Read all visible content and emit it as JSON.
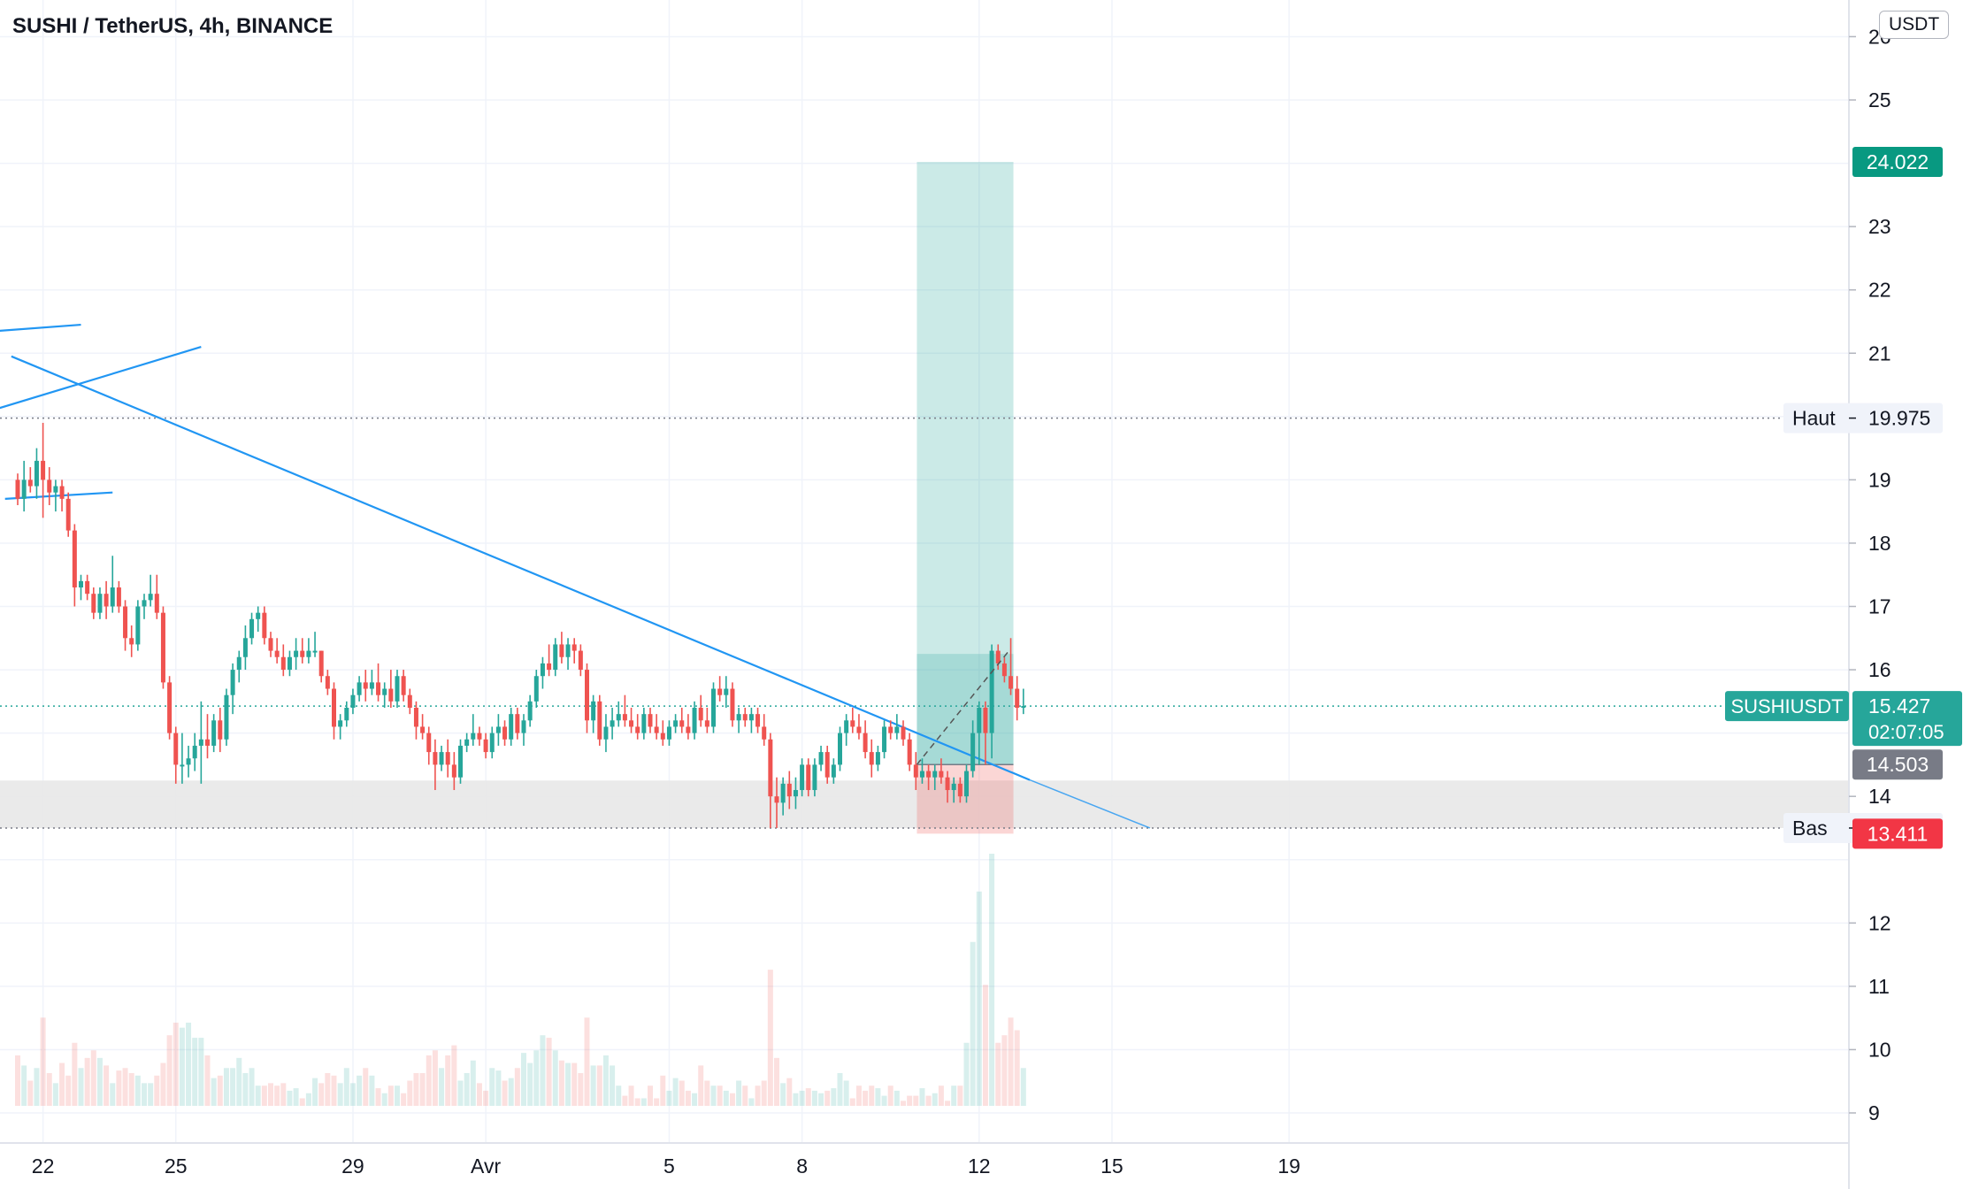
{
  "header": {
    "title": "SUSHI / TetherUS, 4h, BINANCE"
  },
  "currency_button": "USDT",
  "colors": {
    "up": "#26a69a",
    "down": "#ef5350",
    "trendline": "#2196f3",
    "grid": "#f0f3fa"
  },
  "labels": {
    "target": {
      "value": "24.022",
      "color": "#089981"
    },
    "high": {
      "name": "Haut",
      "value": "19.975"
    },
    "symbol": {
      "name": "SUSHIUSDT",
      "price": "15.427",
      "countdown": "02:07:05",
      "color": "#26a69a"
    },
    "entry": {
      "value": "14.503",
      "color": "#787b86"
    },
    "low": {
      "name": "Bas",
      "value": "13.500"
    },
    "stop": {
      "value": "13.411",
      "color": "#f23645"
    }
  },
  "chart_data": {
    "type": "candlestick",
    "y_axis": {
      "min": 8.5,
      "max": 27,
      "ticks": [
        9,
        10,
        11,
        12,
        14,
        16,
        17,
        18,
        19,
        21,
        22,
        23,
        25,
        26
      ],
      "top_tick_partial": "2"
    },
    "x_axis": {
      "labels": [
        {
          "text": "22",
          "bar": 4
        },
        {
          "text": "25",
          "bar": 25
        },
        {
          "text": "29",
          "bar": 53
        },
        {
          "text": "Avr",
          "bar": 74
        },
        {
          "text": "5",
          "bar": 103
        },
        {
          "text": "8",
          "bar": 124
        },
        {
          "text": "12",
          "bar": 152
        },
        {
          "text": "15",
          "bar": 173
        },
        {
          "text": "19",
          "bar": 201
        }
      ]
    },
    "candles_ohlcv": [
      [
        19.0,
        19.1,
        18.6,
        18.7,
        0.2
      ],
      [
        18.7,
        19.3,
        18.5,
        19.0,
        0.16
      ],
      [
        19.0,
        19.2,
        18.8,
        18.9,
        0.1
      ],
      [
        18.9,
        19.5,
        18.7,
        19.3,
        0.15
      ],
      [
        19.3,
        19.9,
        18.4,
        19.0,
        0.35
      ],
      [
        19.0,
        19.2,
        18.6,
        18.8,
        0.13
      ],
      [
        18.8,
        19.0,
        18.5,
        18.9,
        0.09
      ],
      [
        18.9,
        19.0,
        18.5,
        18.7,
        0.17
      ],
      [
        18.7,
        18.8,
        18.1,
        18.2,
        0.12
      ],
      [
        18.2,
        18.3,
        17.0,
        17.3,
        0.25
      ],
      [
        17.3,
        17.5,
        17.1,
        17.4,
        0.15
      ],
      [
        17.4,
        17.5,
        17.1,
        17.2,
        0.19
      ],
      [
        17.2,
        17.3,
        16.8,
        16.9,
        0.22
      ],
      [
        16.9,
        17.3,
        16.8,
        17.2,
        0.19
      ],
      [
        17.2,
        17.4,
        16.8,
        17.0,
        0.16
      ],
      [
        17.0,
        17.8,
        16.9,
        17.3,
        0.09
      ],
      [
        17.3,
        17.4,
        16.9,
        17.0,
        0.14
      ],
      [
        17.0,
        17.1,
        16.3,
        16.5,
        0.15
      ],
      [
        16.5,
        16.7,
        16.2,
        16.4,
        0.13
      ],
      [
        16.4,
        17.1,
        16.3,
        17.0,
        0.12
      ],
      [
        17.0,
        17.2,
        16.8,
        17.1,
        0.09
      ],
      [
        17.1,
        17.5,
        17.0,
        17.2,
        0.09
      ],
      [
        17.2,
        17.5,
        16.8,
        16.9,
        0.12
      ],
      [
        16.9,
        17.0,
        15.7,
        15.8,
        0.17
      ],
      [
        15.8,
        15.9,
        14.9,
        15.0,
        0.28
      ],
      [
        15.0,
        15.1,
        14.2,
        14.5,
        0.33
      ],
      [
        14.5,
        15.0,
        14.2,
        14.5,
        0.31
      ],
      [
        14.5,
        14.8,
        14.3,
        14.6,
        0.33
      ],
      [
        14.6,
        15.0,
        14.4,
        14.8,
        0.27
      ],
      [
        14.8,
        15.5,
        14.2,
        14.9,
        0.27
      ],
      [
        14.9,
        15.3,
        14.6,
        14.8,
        0.2
      ],
      [
        14.8,
        15.3,
        14.7,
        15.2,
        0.11
      ],
      [
        15.2,
        15.4,
        14.7,
        14.9,
        0.12
      ],
      [
        14.9,
        15.7,
        14.8,
        15.6,
        0.15
      ],
      [
        15.6,
        16.1,
        15.3,
        16.0,
        0.15
      ],
      [
        16.0,
        16.3,
        15.8,
        16.2,
        0.19
      ],
      [
        16.2,
        16.7,
        16.0,
        16.5,
        0.13
      ],
      [
        16.5,
        16.9,
        16.4,
        16.8,
        0.15
      ],
      [
        16.8,
        17.0,
        16.6,
        16.9,
        0.08
      ],
      [
        16.9,
        17.0,
        16.4,
        16.5,
        0.08
      ],
      [
        16.5,
        16.6,
        16.2,
        16.3,
        0.09
      ],
      [
        16.3,
        16.5,
        16.1,
        16.2,
        0.08
      ],
      [
        16.2,
        16.4,
        15.9,
        16.0,
        0.09
      ],
      [
        16.0,
        16.3,
        15.9,
        16.2,
        0.06
      ],
      [
        16.2,
        16.5,
        16.0,
        16.3,
        0.07
      ],
      [
        16.3,
        16.5,
        16.1,
        16.2,
        0.03
      ],
      [
        16.2,
        16.5,
        16.1,
        16.3,
        0.05
      ],
      [
        16.3,
        16.6,
        16.2,
        16.3,
        0.11
      ],
      [
        16.3,
        16.3,
        15.8,
        15.9,
        0.09
      ],
      [
        15.9,
        16.0,
        15.6,
        15.7,
        0.13
      ],
      [
        15.7,
        15.8,
        14.9,
        15.1,
        0.12
      ],
      [
        15.1,
        15.3,
        14.9,
        15.2,
        0.09
      ],
      [
        15.2,
        15.5,
        15.1,
        15.4,
        0.15
      ],
      [
        15.4,
        15.7,
        15.3,
        15.6,
        0.09
      ],
      [
        15.6,
        15.9,
        15.5,
        15.8,
        0.12
      ],
      [
        15.8,
        16.0,
        15.5,
        15.7,
        0.15
      ],
      [
        15.7,
        16.0,
        15.6,
        15.8,
        0.12
      ],
      [
        15.8,
        16.1,
        15.5,
        15.6,
        0.07
      ],
      [
        15.6,
        15.8,
        15.4,
        15.7,
        0.05
      ],
      [
        15.7,
        16.0,
        15.4,
        15.5,
        0.08
      ],
      [
        15.5,
        16.0,
        15.4,
        15.9,
        0.08
      ],
      [
        15.9,
        16.0,
        15.5,
        15.6,
        0.05
      ],
      [
        15.6,
        15.7,
        15.3,
        15.4,
        0.1
      ],
      [
        15.4,
        15.5,
        14.9,
        15.1,
        0.13
      ],
      [
        15.1,
        15.3,
        14.9,
        15.0,
        0.13
      ],
      [
        15.0,
        15.1,
        14.5,
        14.7,
        0.2
      ],
      [
        14.7,
        14.9,
        14.1,
        14.5,
        0.22
      ],
      [
        14.5,
        14.8,
        14.4,
        14.7,
        0.15
      ],
      [
        14.7,
        14.9,
        14.3,
        14.5,
        0.2
      ],
      [
        14.5,
        14.7,
        14.1,
        14.3,
        0.24
      ],
      [
        14.3,
        14.9,
        14.2,
        14.8,
        0.1
      ],
      [
        14.8,
        15.0,
        14.7,
        14.9,
        0.13
      ],
      [
        14.9,
        15.3,
        14.8,
        15.0,
        0.18
      ],
      [
        15.0,
        15.1,
        14.8,
        14.9,
        0.09
      ],
      [
        14.9,
        15.0,
        14.6,
        14.7,
        0.06
      ],
      [
        14.7,
        15.1,
        14.6,
        15.0,
        0.15
      ],
      [
        15.0,
        15.3,
        14.8,
        15.1,
        0.14
      ],
      [
        15.1,
        15.2,
        14.8,
        14.9,
        0.1
      ],
      [
        14.9,
        15.4,
        14.8,
        15.3,
        0.11
      ],
      [
        15.3,
        15.4,
        14.9,
        15.0,
        0.15
      ],
      [
        15.0,
        15.3,
        14.8,
        15.2,
        0.21
      ],
      [
        15.2,
        15.6,
        15.1,
        15.5,
        0.17
      ],
      [
        15.5,
        16.0,
        15.4,
        15.9,
        0.22
      ],
      [
        15.9,
        16.2,
        15.7,
        16.1,
        0.28
      ],
      [
        16.1,
        16.4,
        15.9,
        16.0,
        0.27
      ],
      [
        16.0,
        16.5,
        15.9,
        16.4,
        0.22
      ],
      [
        16.4,
        16.6,
        16.1,
        16.2,
        0.18
      ],
      [
        16.2,
        16.5,
        16.0,
        16.4,
        0.17
      ],
      [
        16.4,
        16.5,
        16.1,
        16.3,
        0.17
      ],
      [
        16.3,
        16.4,
        15.9,
        16.0,
        0.13
      ],
      [
        16.0,
        16.1,
        15.0,
        15.2,
        0.35
      ],
      [
        15.2,
        15.6,
        15.0,
        15.5,
        0.16
      ],
      [
        15.5,
        15.6,
        14.8,
        14.9,
        0.16
      ],
      [
        14.9,
        15.3,
        14.7,
        15.1,
        0.2
      ],
      [
        15.1,
        15.4,
        14.9,
        15.2,
        0.16
      ],
      [
        15.2,
        15.5,
        15.1,
        15.3,
        0.08
      ],
      [
        15.3,
        15.6,
        15.1,
        15.2,
        0.04
      ],
      [
        15.2,
        15.4,
        15.0,
        15.1,
        0.08
      ],
      [
        15.1,
        15.3,
        14.9,
        15.0,
        0.03
      ],
      [
        15.0,
        15.4,
        14.9,
        15.3,
        0.03
      ],
      [
        15.3,
        15.4,
        15.0,
        15.1,
        0.08
      ],
      [
        15.1,
        15.3,
        14.9,
        15.0,
        0.03
      ],
      [
        15.0,
        15.2,
        14.8,
        14.9,
        0.12
      ],
      [
        14.9,
        15.2,
        14.8,
        15.1,
        0.06
      ],
      [
        15.1,
        15.3,
        15.0,
        15.2,
        0.11
      ],
      [
        15.2,
        15.4,
        15.0,
        15.1,
        0.1
      ],
      [
        15.1,
        15.3,
        14.9,
        15.0,
        0.06
      ],
      [
        15.0,
        15.5,
        14.9,
        15.4,
        0.05
      ],
      [
        15.4,
        15.6,
        15.1,
        15.2,
        0.16
      ],
      [
        15.2,
        15.4,
        15.0,
        15.1,
        0.1
      ],
      [
        15.1,
        15.8,
        15.0,
        15.7,
        0.08
      ],
      [
        15.7,
        15.9,
        15.5,
        15.6,
        0.08
      ],
      [
        15.6,
        15.9,
        15.4,
        15.7,
        0.06
      ],
      [
        15.7,
        15.8,
        15.1,
        15.2,
        0.05
      ],
      [
        15.2,
        15.4,
        15.0,
        15.3,
        0.1
      ],
      [
        15.3,
        15.4,
        15.1,
        15.2,
        0.08
      ],
      [
        15.2,
        15.4,
        15.0,
        15.3,
        0.03
      ],
      [
        15.3,
        15.4,
        15.0,
        15.1,
        0.08
      ],
      [
        15.1,
        15.3,
        14.8,
        14.9,
        0.1
      ],
      [
        14.9,
        15.0,
        13.5,
        14.0,
        0.54
      ],
      [
        14.0,
        14.3,
        13.5,
        13.9,
        0.19
      ],
      [
        13.9,
        14.3,
        13.7,
        14.2,
        0.09
      ],
      [
        14.2,
        14.4,
        13.8,
        14.0,
        0.11
      ],
      [
        14.0,
        14.3,
        13.8,
        14.1,
        0.05
      ],
      [
        14.1,
        14.6,
        14.0,
        14.5,
        0.06
      ],
      [
        14.5,
        14.6,
        14.0,
        14.1,
        0.07
      ],
      [
        14.1,
        14.6,
        14.0,
        14.5,
        0.06
      ],
      [
        14.5,
        14.8,
        14.4,
        14.7,
        0.05
      ],
      [
        14.7,
        14.8,
        14.2,
        14.3,
        0.06
      ],
      [
        14.3,
        14.6,
        14.2,
        14.5,
        0.07
      ],
      [
        14.5,
        15.1,
        14.4,
        15.0,
        0.13
      ],
      [
        15.0,
        15.3,
        14.8,
        15.2,
        0.1
      ],
      [
        15.2,
        15.4,
        15.0,
        15.1,
        0.03
      ],
      [
        15.1,
        15.3,
        14.9,
        15.0,
        0.08
      ],
      [
        15.0,
        15.2,
        14.6,
        14.7,
        0.06
      ],
      [
        14.7,
        14.9,
        14.3,
        14.5,
        0.08
      ],
      [
        14.5,
        14.8,
        14.4,
        14.7,
        0.07
      ],
      [
        14.7,
        15.2,
        14.6,
        15.1,
        0.04
      ],
      [
        15.1,
        15.2,
        14.9,
        15.0,
        0.08
      ],
      [
        15.0,
        15.3,
        14.9,
        15.1,
        0.06
      ],
      [
        15.1,
        15.2,
        14.8,
        14.9,
        0.02
      ],
      [
        14.9,
        15.0,
        14.4,
        14.5,
        0.04
      ],
      [
        14.5,
        14.7,
        14.1,
        14.3,
        0.04
      ],
      [
        14.3,
        14.6,
        14.2,
        14.4,
        0.07
      ],
      [
        14.4,
        14.5,
        14.1,
        14.3,
        0.04
      ],
      [
        14.3,
        14.5,
        14.1,
        14.4,
        0.05
      ],
      [
        14.4,
        14.6,
        14.2,
        14.3,
        0.08
      ],
      [
        14.3,
        14.4,
        13.9,
        14.1,
        0.02
      ],
      [
        14.1,
        14.3,
        13.9,
        14.2,
        0.08
      ],
      [
        14.2,
        14.3,
        13.9,
        14.0,
        0.08
      ],
      [
        14.0,
        14.5,
        13.9,
        14.4,
        0.25
      ],
      [
        14.4,
        15.2,
        14.3,
        15.0,
        0.65
      ],
      [
        15.0,
        15.5,
        14.5,
        15.4,
        0.85
      ],
      [
        15.4,
        15.5,
        14.5,
        15.0,
        0.48
      ],
      [
        15.0,
        16.4,
        14.6,
        16.3,
        1.0
      ],
      [
        16.3,
        16.4,
        16.0,
        16.1,
        0.25
      ],
      [
        16.1,
        16.2,
        15.8,
        15.9,
        0.28
      ],
      [
        15.9,
        16.5,
        15.6,
        15.7,
        0.35
      ],
      [
        15.7,
        15.9,
        15.2,
        15.4,
        0.3
      ],
      [
        15.4,
        15.7,
        15.3,
        15.427,
        0.15
      ]
    ],
    "drawings": {
      "trendlines": [
        {
          "from": {
            "bar": -10,
            "price": 21.3
          },
          "to": {
            "bar": 10,
            "price": 21.45
          }
        },
        {
          "from": {
            "bar": -4,
            "price": 20.1
          },
          "to": {
            "bar": 29,
            "price": 21.1
          }
        },
        {
          "from": {
            "bar": -2,
            "price": 18.7
          },
          "to": {
            "bar": 15,
            "price": 18.8
          }
        },
        {
          "from": {
            "bar": -1,
            "price": 20.95
          },
          "to": {
            "bar": 160,
            "price": 14.26
          }
        },
        {
          "from": {
            "bar": 160,
            "price": 14.26
          },
          "to": {
            "bar": 179,
            "price": 13.5
          }
        }
      ],
      "horizontal_dotted": [
        19.975,
        13.5,
        15.427
      ],
      "support_zone": [
        13.5,
        14.25
      ],
      "long_position": {
        "bar_start": 143,
        "bar_end": 157,
        "entry": 14.503,
        "target": 24.022,
        "stop": 13.411
      },
      "dashed_arrow": {
        "from": {
          "bar": 143,
          "price": 14.503
        },
        "to": {
          "bar": 157,
          "price": 16.3
        }
      }
    }
  }
}
